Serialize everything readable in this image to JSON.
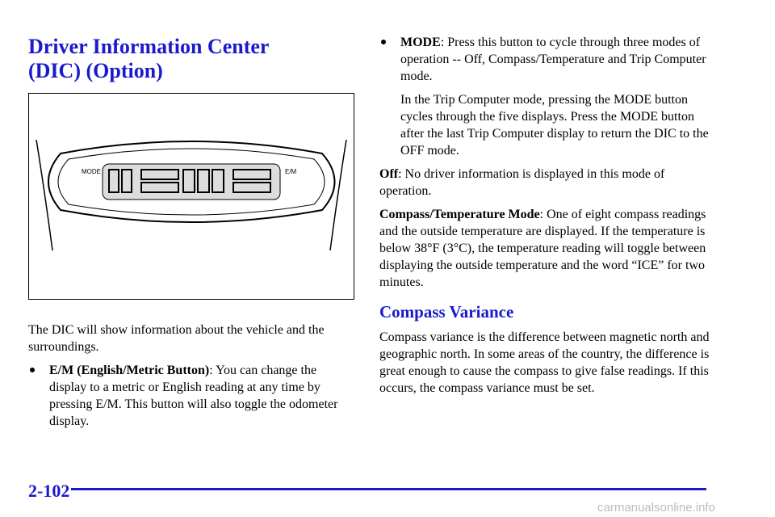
{
  "header": {
    "title_line1": "Driver Information Center",
    "title_line2": "(DIC) (Option)"
  },
  "figure": {
    "buttons": [
      "MODE",
      "E/M"
    ]
  },
  "left": {
    "intro": "The DIC will show information about the vehicle and the surroundings.",
    "bullets": [
      {
        "term": "E/M (English/Metric Button)",
        "text": ": You can change the display to a metric or English reading at any time by pressing E/M. This button will also toggle the odometer display."
      }
    ]
  },
  "right": {
    "bullets": [
      {
        "term": "MODE",
        "text": ": Press this button to cycle through three modes of operation -- Off, Compass/Temperature and Trip Computer mode."
      }
    ],
    "bullet_note": "In the Trip Computer mode, pressing the MODE button cycles through the five displays. Press the MODE button after the last Trip Computer display to return the DIC to the OFF mode.",
    "paragraphs": [
      {
        "term": "Off",
        "text": ": No driver information is displayed in this mode of operation."
      },
      {
        "term": "Compass/Temperature Mode",
        "text": ": One of eight compass readings and the outside temperature are displayed. If the temperature is below 38°F (3°C), the temperature reading will toggle between displaying the outside temperature and the word “ICE” for two minutes."
      }
    ],
    "section_title": "Compass Variance",
    "section_text": "Compass variance is the difference between magnetic north and geographic north. In some areas of the country, the difference is great enough to cause the compass to give false readings. If this occurs, the compass variance must be set."
  },
  "footer": {
    "page_number": "2-102",
    "watermark": "carmanualsonline.info"
  }
}
